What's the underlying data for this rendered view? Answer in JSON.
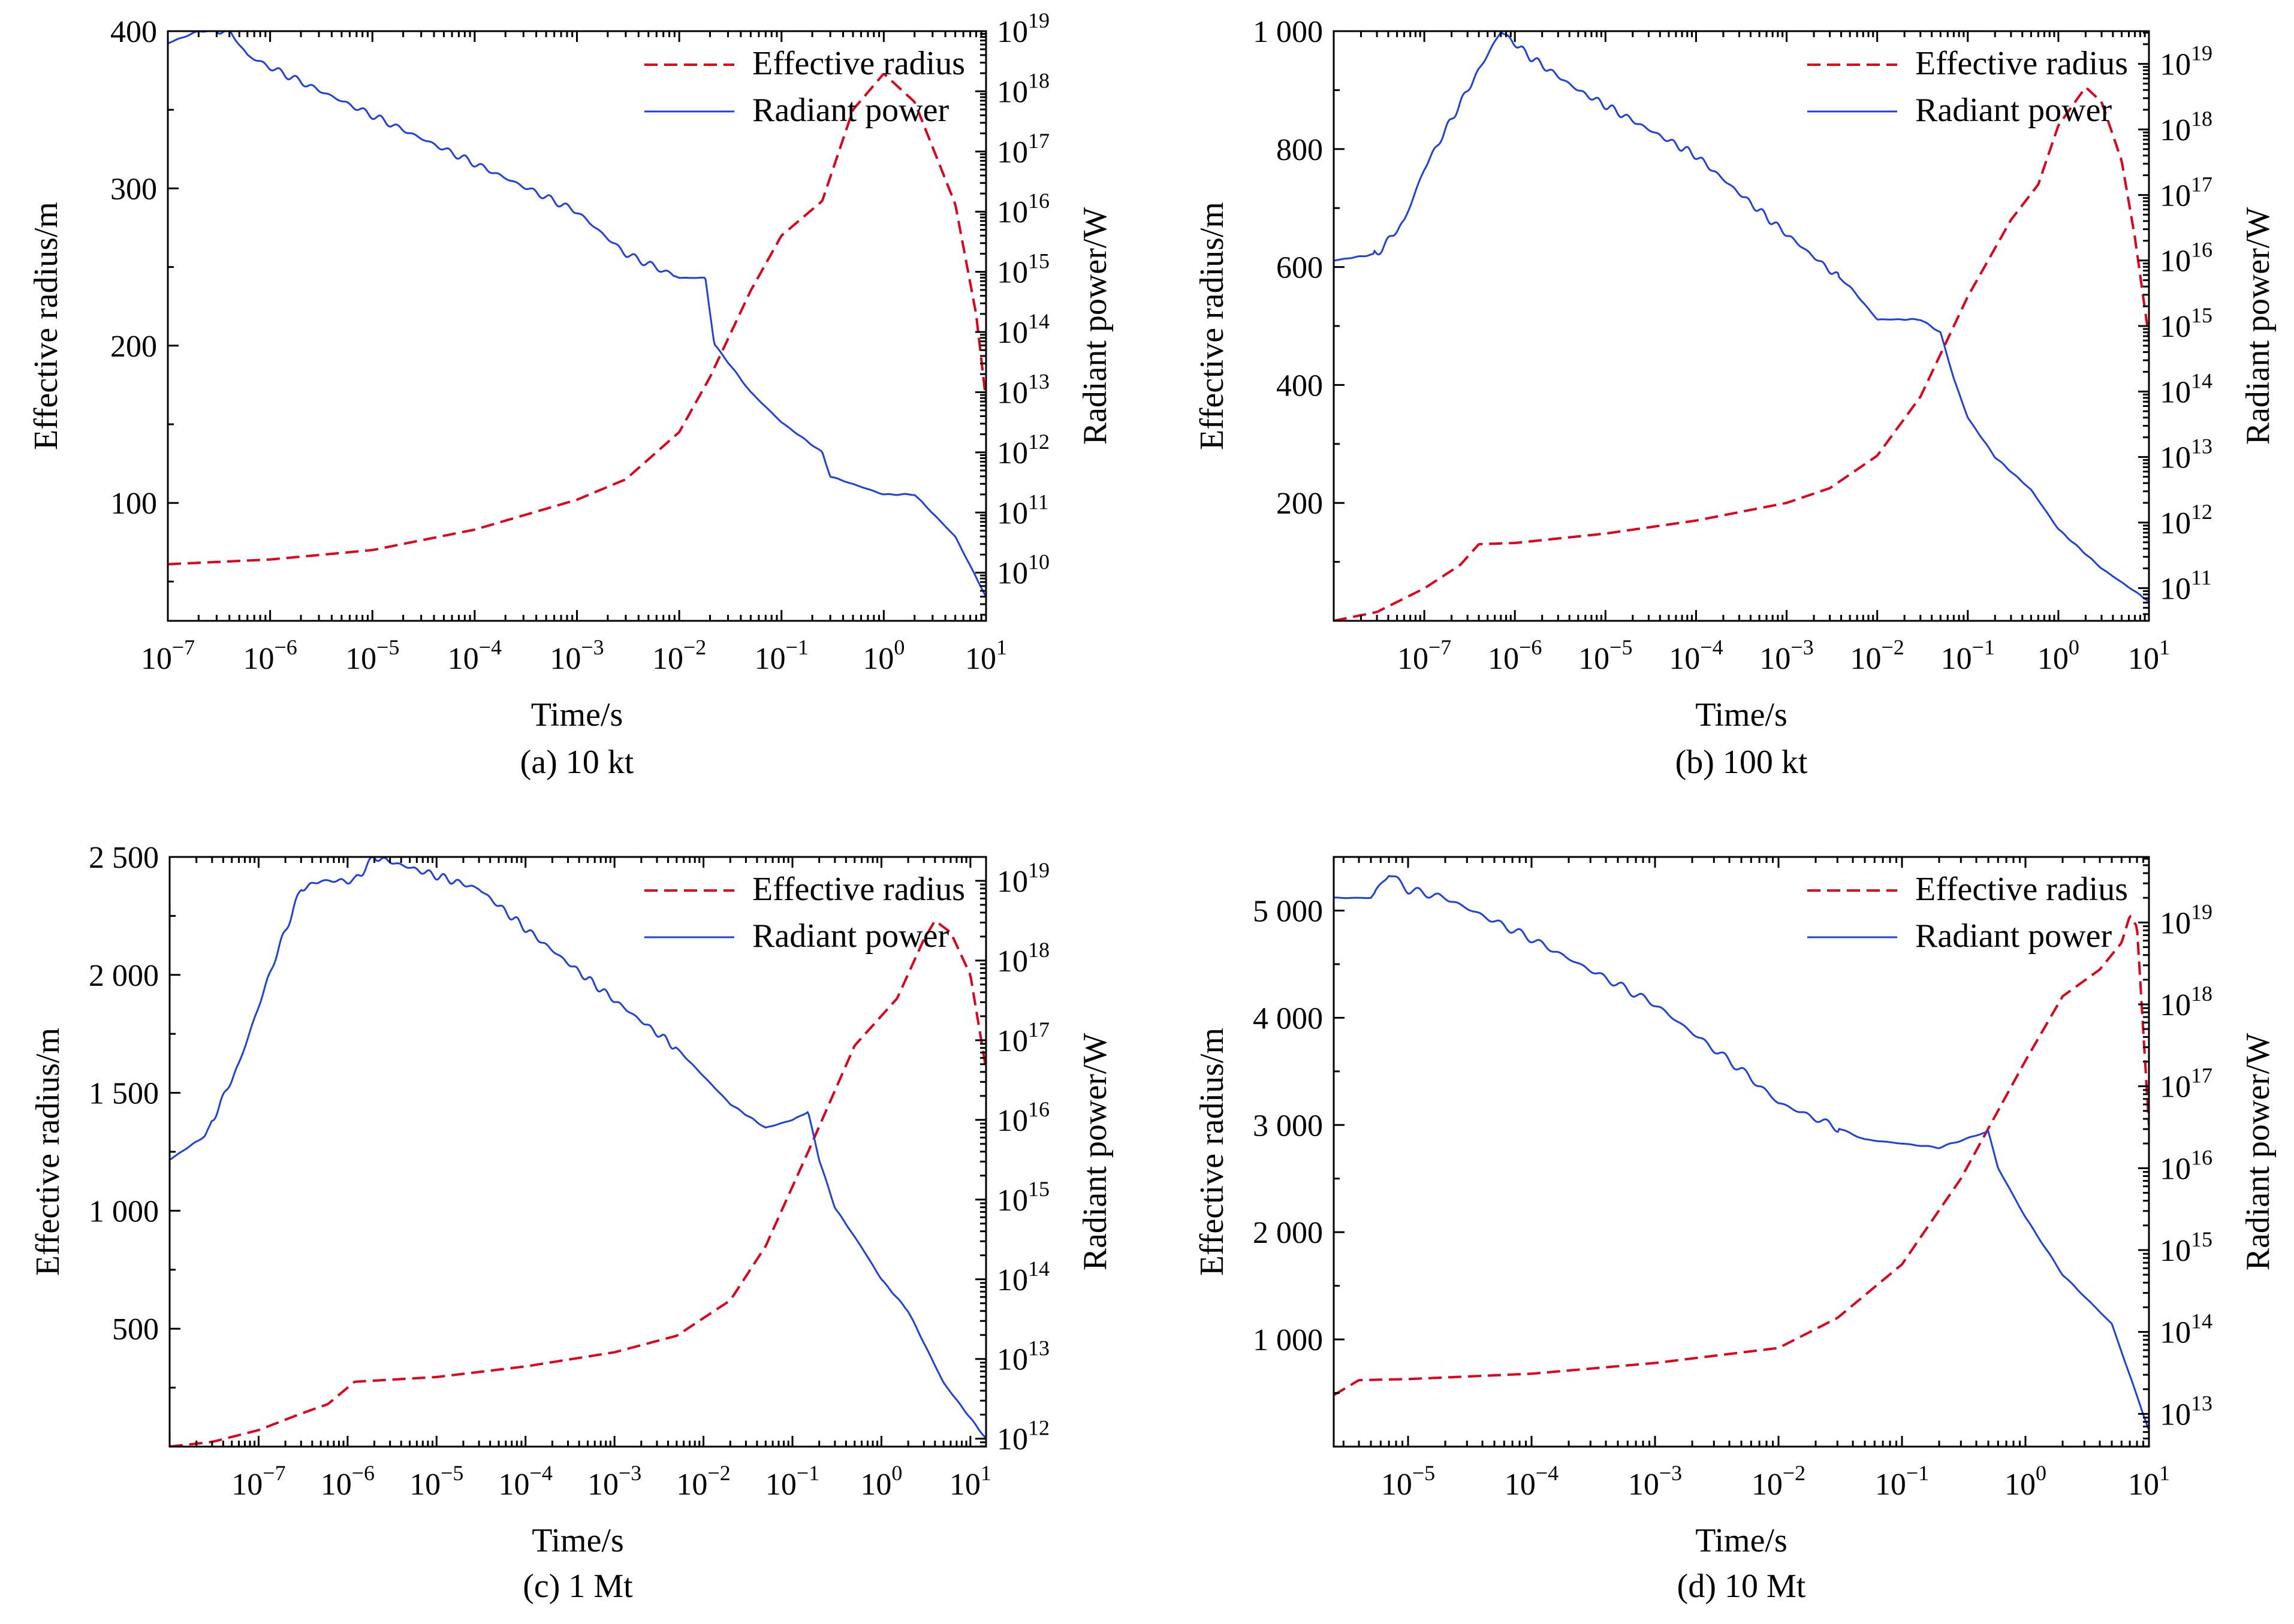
{
  "colors": {
    "effective_radius": "#e0001b",
    "radiant_power": "#1f3fe0",
    "axis": "#000000"
  },
  "chart_data": [
    {
      "id": "a",
      "type": "line",
      "caption": "(a) 10 kt",
      "xlabel": "Time/s",
      "ylabel": "Effective radius/m",
      "y2label": "Radiant power/W",
      "xscale": "log",
      "xlim": [
        1e-07,
        10
      ],
      "xticks": [
        {
          "v": 1e-07,
          "e": "−7"
        },
        {
          "v": 1e-06,
          "e": "−6"
        },
        {
          "v": 1e-05,
          "e": "−5"
        },
        {
          "v": 0.0001,
          "e": "−4"
        },
        {
          "v": 0.001,
          "e": "−3"
        },
        {
          "v": 0.01,
          "e": "−2"
        },
        {
          "v": 0.1,
          "e": "−1"
        },
        {
          "v": 1,
          "e": "0"
        },
        {
          "v": 10,
          "e": "1"
        }
      ],
      "ylim": [
        25,
        400
      ],
      "yticks": [
        {
          "v": 100,
          "t": "100"
        },
        {
          "v": 200,
          "t": "200"
        },
        {
          "v": 300,
          "t": "300"
        },
        {
          "v": 400,
          "t": "400"
        }
      ],
      "y2scale": "log",
      "y2lim_exp": [
        9.2,
        19.0
      ],
      "y2ticks": [
        10,
        11,
        12,
        13,
        14,
        15,
        16,
        17,
        18,
        19
      ],
      "legend": {
        "position": "top-right",
        "entries": [
          "Effective radius",
          "Radiant power"
        ]
      },
      "series": [
        {
          "name": "Effective radius",
          "axis": "left",
          "style": "dashed",
          "points": [
            [
              1e-07,
              61
            ],
            [
              1e-06,
              64
            ],
            [
              1e-05,
              70
            ],
            [
              0.0001,
              83
            ],
            [
              0.001,
              102
            ],
            [
              0.003,
              115
            ],
            [
              0.01,
              145
            ],
            [
              0.02,
              180
            ],
            [
              0.05,
              235
            ],
            [
              0.1,
              270
            ],
            [
              0.25,
              292
            ],
            [
              0.5,
              350
            ],
            [
              1.0,
              373
            ],
            [
              2,
              355
            ],
            [
              5,
              290
            ],
            [
              8,
              220
            ],
            [
              10,
              165
            ]
          ]
        },
        {
          "name": "Radiant power",
          "axis": "right",
          "style": "solid",
          "oscillation": 0.06,
          "points_log": [
            [
              1e-07,
              18.8
            ],
            [
              2e-07,
              19.0
            ],
            [
              4e-07,
              19.0
            ],
            [
              6e-07,
              18.6
            ],
            [
              1e-06,
              18.4
            ],
            [
              1e-05,
              17.6
            ],
            [
              0.0001,
              16.8
            ],
            [
              0.001,
              16.0
            ],
            [
              0.003,
              15.3
            ],
            [
              0.01,
              14.9
            ],
            [
              0.018,
              14.9
            ],
            [
              0.022,
              13.8
            ],
            [
              0.05,
              13.0
            ],
            [
              0.1,
              12.5
            ],
            [
              0.25,
              12.0
            ],
            [
              0.3,
              11.6
            ],
            [
              1,
              11.3
            ],
            [
              2,
              11.3
            ],
            [
              5,
              10.6
            ],
            [
              10,
              9.6
            ]
          ]
        }
      ]
    },
    {
      "id": "b",
      "type": "line",
      "caption": "(b) 100 kt",
      "xlabel": "Time/s",
      "ylabel": "Effective radius/m",
      "y2label": "Radiant power/W",
      "xscale": "log",
      "xlim": [
        1e-08,
        10
      ],
      "xticks": [
        {
          "v": 1e-07,
          "e": "−7"
        },
        {
          "v": 1e-06,
          "e": "−6"
        },
        {
          "v": 1e-05,
          "e": "−5"
        },
        {
          "v": 0.0001,
          "e": "−4"
        },
        {
          "v": 0.001,
          "e": "−3"
        },
        {
          "v": 0.01,
          "e": "−2"
        },
        {
          "v": 0.1,
          "e": "−1"
        },
        {
          "v": 1,
          "e": "0"
        },
        {
          "v": 10,
          "e": "1"
        }
      ],
      "ylim": [
        0,
        1000
      ],
      "yticks": [
        {
          "v": 200,
          "t": "200"
        },
        {
          "v": 400,
          "t": "400"
        },
        {
          "v": 600,
          "t": "600"
        },
        {
          "v": 800,
          "t": "800"
        },
        {
          "v": 1000,
          "t": "1 000"
        }
      ],
      "y2scale": "log",
      "y2lim_exp": [
        10.5,
        19.5
      ],
      "y2ticks": [
        11,
        12,
        13,
        14,
        15,
        16,
        17,
        18,
        19
      ],
      "legend": {
        "position": "top-right",
        "entries": [
          "Effective radius",
          "Radiant power"
        ]
      },
      "series": [
        {
          "name": "Effective radius",
          "axis": "left",
          "style": "dashed",
          "points": [
            [
              1e-08,
              0
            ],
            [
              3e-08,
              15
            ],
            [
              1e-07,
              55
            ],
            [
              2.5e-07,
              95
            ],
            [
              4e-07,
              130
            ],
            [
              1e-06,
              132
            ],
            [
              1e-05,
              148
            ],
            [
              0.0001,
              170
            ],
            [
              0.001,
              200
            ],
            [
              0.003,
              225
            ],
            [
              0.01,
              280
            ],
            [
              0.03,
              380
            ],
            [
              0.1,
              550
            ],
            [
              0.3,
              680
            ],
            [
              0.6,
              740
            ],
            [
              1,
              840
            ],
            [
              2,
              905
            ],
            [
              3,
              880
            ],
            [
              5,
              780
            ],
            [
              7,
              650
            ],
            [
              10,
              480
            ]
          ]
        },
        {
          "name": "Radiant power",
          "axis": "right",
          "style": "solid",
          "oscillation": 0.06,
          "points_log": [
            [
              1e-08,
              16.0
            ],
            [
              3e-08,
              16.1
            ],
            [
              6e-08,
              16.6
            ],
            [
              1e-07,
              17.4
            ],
            [
              3e-07,
              18.6
            ],
            [
              7e-07,
              19.5
            ],
            [
              1.5e-06,
              19.1
            ],
            [
              5e-06,
              18.6
            ],
            [
              3e-05,
              18.0
            ],
            [
              0.0001,
              17.6
            ],
            [
              0.001,
              16.4
            ],
            [
              0.005,
              15.6
            ],
            [
              0.01,
              15.1
            ],
            [
              0.03,
              15.1
            ],
            [
              0.05,
              14.9
            ],
            [
              0.07,
              14.2
            ],
            [
              0.1,
              13.6
            ],
            [
              0.2,
              13.0
            ],
            [
              0.5,
              12.5
            ],
            [
              1,
              11.9
            ],
            [
              3,
              11.3
            ],
            [
              10,
              10.8
            ]
          ]
        }
      ]
    },
    {
      "id": "c",
      "type": "line",
      "caption": "(c) 1 Mt",
      "xlabel": "Time/s",
      "ylabel": "Effective radius/m",
      "y2label": "Radiant power/W",
      "xscale": "log",
      "xlim": [
        1e-08,
        15
      ],
      "xticks": [
        {
          "v": 1e-07,
          "e": "−7"
        },
        {
          "v": 1e-06,
          "e": "−6"
        },
        {
          "v": 1e-05,
          "e": "−5"
        },
        {
          "v": 0.0001,
          "e": "−4"
        },
        {
          "v": 0.001,
          "e": "−3"
        },
        {
          "v": 0.01,
          "e": "−2"
        },
        {
          "v": 0.1,
          "e": "−1"
        },
        {
          "v": 1,
          "e": "0"
        },
        {
          "v": 10,
          "e": "1"
        }
      ],
      "ylim": [
        0,
        2500
      ],
      "yticks": [
        {
          "v": 500,
          "t": "500"
        },
        {
          "v": 1000,
          "t": "1 000"
        },
        {
          "v": 1500,
          "t": "1 500"
        },
        {
          "v": 2000,
          "t": "2 000"
        },
        {
          "v": 2500,
          "t": "2 500"
        }
      ],
      "y2scale": "log",
      "y2lim_exp": [
        11.9,
        19.3
      ],
      "y2ticks": [
        12,
        13,
        14,
        15,
        16,
        17,
        18,
        19
      ],
      "legend": {
        "position": "top-right",
        "entries": [
          "Effective radius",
          "Radiant power"
        ]
      },
      "series": [
        {
          "name": "Effective radius",
          "axis": "left",
          "style": "dashed",
          "points": [
            [
              1e-08,
              0
            ],
            [
              3e-08,
              20
            ],
            [
              1e-07,
              70
            ],
            [
              3e-07,
              140
            ],
            [
              6e-07,
              180
            ],
            [
              1.2e-06,
              275
            ],
            [
              1e-05,
              295
            ],
            [
              0.0001,
              340
            ],
            [
              0.001,
              400
            ],
            [
              0.005,
              470
            ],
            [
              0.02,
              620
            ],
            [
              0.05,
              850
            ],
            [
              0.15,
              1250
            ],
            [
              0.5,
              1700
            ],
            [
              1.5,
              1900
            ],
            [
              3,
              2150
            ],
            [
              4,
              2230
            ],
            [
              6,
              2180
            ],
            [
              10,
              2000
            ],
            [
              15,
              1600
            ]
          ]
        },
        {
          "name": "Radiant power",
          "axis": "right",
          "style": "solid",
          "oscillation": 0.05,
          "points_log": [
            [
              1e-08,
              15.5
            ],
            [
              2.5e-08,
              15.8
            ],
            [
              6e-08,
              16.7
            ],
            [
              1.5e-07,
              18.0
            ],
            [
              3e-07,
              18.9
            ],
            [
              5e-07,
              19.0
            ],
            [
              1.2e-06,
              19.0
            ],
            [
              2e-06,
              19.3
            ],
            [
              4e-06,
              19.2
            ],
            [
              3e-05,
              18.9
            ],
            [
              0.0001,
              18.4
            ],
            [
              0.001,
              17.5
            ],
            [
              0.005,
              16.9
            ],
            [
              0.02,
              16.2
            ],
            [
              0.05,
              15.9
            ],
            [
              0.1,
              16.0
            ],
            [
              0.15,
              16.1
            ],
            [
              0.2,
              15.5
            ],
            [
              0.3,
              14.9
            ],
            [
              0.6,
              14.4
            ],
            [
              1,
              14.0
            ],
            [
              2,
              13.6
            ],
            [
              5,
              12.7
            ],
            [
              15,
              12.0
            ]
          ]
        }
      ]
    },
    {
      "id": "d",
      "type": "line",
      "caption": "(d) 10 Mt",
      "xlabel": "Time/s",
      "ylabel": "Effective radius/m",
      "y2label": "Radiant power/W",
      "xscale": "log",
      "xlim": [
        2.5e-06,
        10
      ],
      "xticks": [
        {
          "v": 1e-05,
          "e": "−5"
        },
        {
          "v": 0.0001,
          "e": "−4"
        },
        {
          "v": 0.001,
          "e": "−3"
        },
        {
          "v": 0.01,
          "e": "−2"
        },
        {
          "v": 0.1,
          "e": "−1"
        },
        {
          "v": 1,
          "e": "0"
        },
        {
          "v": 10,
          "e": "1"
        }
      ],
      "ylim": [
        0,
        5500
      ],
      "yticks": [
        {
          "v": 1000,
          "t": "1 000"
        },
        {
          "v": 2000,
          "t": "2 000"
        },
        {
          "v": 3000,
          "t": "3 000"
        },
        {
          "v": 4000,
          "t": "4 000"
        },
        {
          "v": 5000,
          "t": "5 000"
        }
      ],
      "y2scale": "log",
      "y2lim_exp": [
        12.6,
        19.8
      ],
      "y2ticks": [
        13,
        14,
        15,
        16,
        17,
        18,
        19
      ],
      "legend": {
        "position": "top-right",
        "entries": [
          "Effective radius",
          "Radiant power"
        ]
      },
      "series": [
        {
          "name": "Effective radius",
          "axis": "left",
          "style": "dashed",
          "points": [
            [
              2.5e-06,
              480
            ],
            [
              4e-06,
              620
            ],
            [
              1e-05,
              630
            ],
            [
              0.0001,
              680
            ],
            [
              0.001,
              780
            ],
            [
              0.01,
              920
            ],
            [
              0.03,
              1200
            ],
            [
              0.1,
              1700
            ],
            [
              0.3,
              2500
            ],
            [
              1,
              3600
            ],
            [
              2,
              4200
            ],
            [
              4,
              4450
            ],
            [
              6,
              4700
            ],
            [
              7,
              4950
            ],
            [
              8,
              4850
            ],
            [
              10,
              3000
            ]
          ]
        },
        {
          "name": "Radiant power",
          "axis": "right",
          "style": "solid",
          "oscillation": 0.05,
          "points_log": [
            [
              2.5e-06,
              19.3
            ],
            [
              5e-06,
              19.3
            ],
            [
              7e-06,
              19.6
            ],
            [
              1e-05,
              19.4
            ],
            [
              2e-05,
              19.3
            ],
            [
              0.0001,
              18.8
            ],
            [
              0.001,
              18.0
            ],
            [
              0.005,
              17.2
            ],
            [
              0.01,
              16.8
            ],
            [
              0.05,
              16.35
            ],
            [
              0.2,
              16.25
            ],
            [
              0.4,
              16.4
            ],
            [
              0.5,
              16.45
            ],
            [
              0.6,
              16.0
            ],
            [
              1,
              15.4
            ],
            [
              2,
              14.7
            ],
            [
              5,
              14.1
            ],
            [
              10,
              12.8
            ]
          ]
        }
      ]
    }
  ]
}
